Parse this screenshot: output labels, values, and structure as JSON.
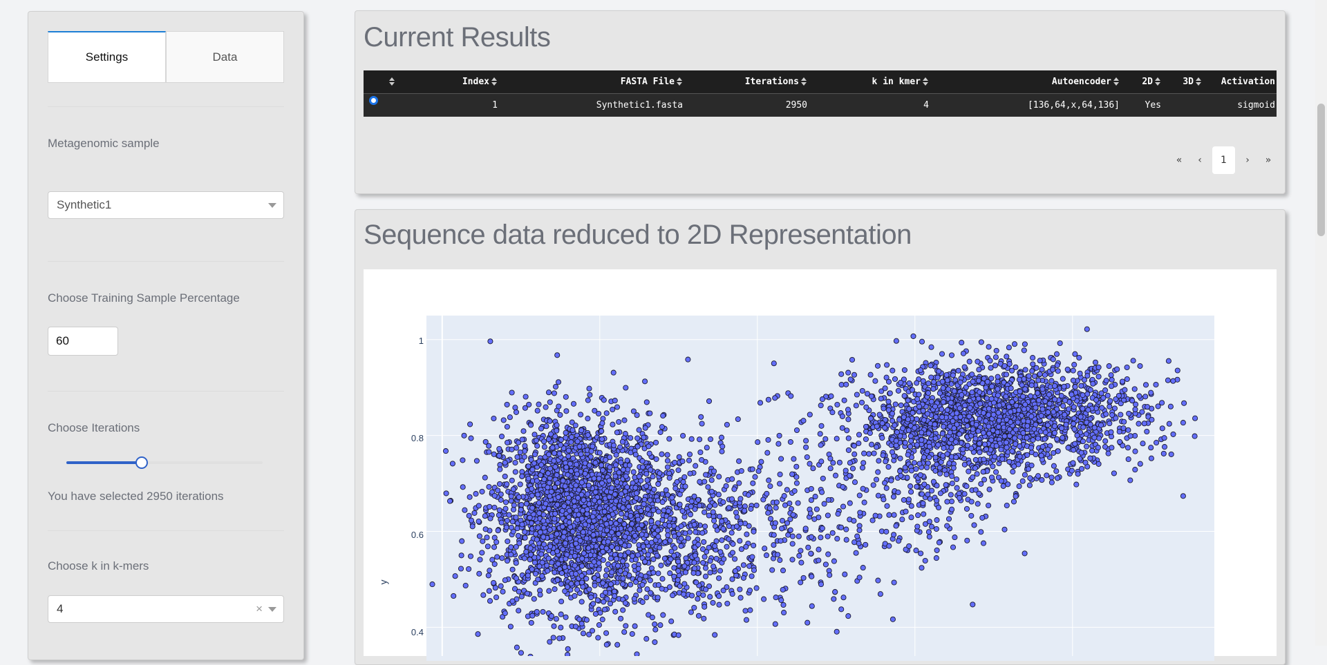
{
  "sidebar": {
    "tabs": [
      {
        "label": "Settings",
        "active": true
      },
      {
        "label": "Data",
        "active": false
      }
    ],
    "sample": {
      "label": "Metagenomic sample",
      "value": "Synthetic1"
    },
    "training": {
      "label": "Choose Training Sample Percentage",
      "value": "60"
    },
    "iterations": {
      "label": "Choose Iterations",
      "value_fraction": 0.38,
      "status": "You have selected 2950 iterations"
    },
    "kmer": {
      "label": "Choose k in k-mers",
      "value": "4",
      "clear_icon": "×"
    }
  },
  "results": {
    "title": "Current Results",
    "columns": [
      "",
      "Index",
      "FASTA File",
      "Iterations",
      "k in kmer",
      "Autoencoder",
      "2D",
      "3D",
      "Activation"
    ],
    "rows": [
      {
        "index": "1",
        "fasta": "Synthetic1.fasta",
        "iterations": "2950",
        "kmer": "4",
        "autoencoder": "[136,64,x,64,136]",
        "d2": "Yes",
        "d3": "",
        "activation": "sigmoid"
      }
    ],
    "pager": {
      "first": "«",
      "prev": "‹",
      "current": "1",
      "next": "›",
      "last": "»"
    }
  },
  "plot": {
    "title": "Sequence data reduced to 2D Representation",
    "chart_data": {
      "type": "scatter",
      "xlabel": "",
      "ylabel": "y",
      "yticks": [
        "1",
        "0.8",
        "0.6",
        "0.4"
      ],
      "ylim": [
        0.33,
        1.05
      ],
      "xlim": [
        0,
        1
      ],
      "marker_color": "#636efa",
      "marker_edge": "#1a1a2e",
      "clusters": [
        {
          "cx": 0.19,
          "cy": 0.64,
          "sx": 0.055,
          "sy": 0.1,
          "n": 2200
        },
        {
          "cx": 0.31,
          "cy": 0.6,
          "sx": 0.06,
          "sy": 0.1,
          "n": 600
        },
        {
          "cx": 0.47,
          "cy": 0.62,
          "sx": 0.07,
          "sy": 0.1,
          "n": 250
        },
        {
          "cx": 0.73,
          "cy": 0.84,
          "sx": 0.09,
          "sy": 0.055,
          "n": 1800
        },
        {
          "cx": 0.64,
          "cy": 0.72,
          "sx": 0.05,
          "sy": 0.08,
          "n": 300
        }
      ]
    }
  },
  "colors": {
    "accent": "#2f62c8",
    "panel": "#e6e6e6",
    "table_header": "#1f1f1f",
    "table_row": "#2a2a2a"
  }
}
